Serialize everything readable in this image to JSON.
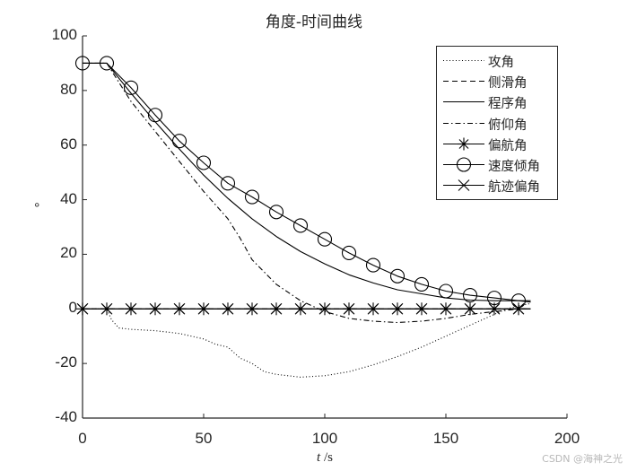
{
  "chart_data": {
    "type": "line",
    "title": "角度-时间曲线",
    "xlabel": "t /s",
    "xlabel_italic_part": "t",
    "xlabel_unit": " /s",
    "ylabel": "°",
    "xlim": [
      0,
      200
    ],
    "ylim": [
      -40,
      100
    ],
    "xticks": [
      0,
      50,
      100,
      150,
      200
    ],
    "yticks": [
      -40,
      -20,
      0,
      20,
      40,
      60,
      80,
      100
    ],
    "grid": false,
    "legend_position": "northeast",
    "series": [
      {
        "name": "攻角",
        "style": "dotted",
        "marker": "none",
        "x": [
          0,
          10,
          12,
          15,
          20,
          30,
          40,
          50,
          55,
          60,
          65,
          70,
          75,
          80,
          90,
          100,
          110,
          120,
          130,
          140,
          150,
          160,
          170,
          175,
          180,
          185
        ],
        "y": [
          0,
          0,
          -4,
          -7,
          -7.5,
          -8,
          -9,
          -11,
          -13,
          -14,
          -18,
          -20,
          -23,
          -24,
          -25,
          -24.5,
          -23,
          -20.5,
          -17.5,
          -14,
          -10,
          -6,
          -2,
          0,
          1,
          2
        ]
      },
      {
        "name": "侧滑角",
        "style": "dashed",
        "marker": "none",
        "x": [
          0,
          185
        ],
        "y": [
          0,
          0
        ]
      },
      {
        "name": "程序角",
        "style": "solid",
        "marker": "none",
        "x": [
          0,
          10,
          20,
          30,
          40,
          50,
          60,
          70,
          80,
          90,
          100,
          110,
          120,
          130,
          140,
          150,
          160,
          170,
          180,
          185
        ],
        "y": [
          90,
          90,
          79,
          68.5,
          58.5,
          49,
          40.5,
          33,
          26.5,
          21,
          16.5,
          12.5,
          9.5,
          7,
          5.5,
          4,
          3.2,
          3,
          3,
          3
        ]
      },
      {
        "name": "俯仰角",
        "style": "dashdot",
        "marker": "none",
        "x": [
          0,
          10,
          15,
          20,
          30,
          40,
          50,
          60,
          65,
          70,
          80,
          90,
          95,
          100,
          110,
          120,
          130,
          140,
          150,
          160,
          170,
          180,
          185
        ],
        "y": [
          90,
          90,
          83,
          76,
          65,
          54,
          43,
          33,
          26,
          18,
          9,
          3,
          1,
          -1,
          -3.5,
          -4.5,
          -5,
          -4.5,
          -3.5,
          -2,
          -1,
          0,
          0
        ]
      },
      {
        "name": "偏航角",
        "style": "solid",
        "marker": "asterisk",
        "x": [
          0,
          10,
          20,
          30,
          40,
          50,
          60,
          70,
          80,
          90,
          100,
          110,
          120,
          130,
          140,
          150,
          160,
          170,
          180,
          185
        ],
        "y": [
          0,
          0,
          0,
          0,
          0,
          0,
          0,
          0,
          0,
          0,
          0,
          0,
          0,
          0,
          0,
          0,
          0,
          0,
          0,
          0
        ]
      },
      {
        "name": "速度倾角",
        "style": "solid",
        "marker": "circle",
        "x": [
          0,
          10,
          20,
          30,
          40,
          50,
          60,
          70,
          80,
          90,
          100,
          110,
          120,
          130,
          140,
          150,
          160,
          170,
          180,
          185
        ],
        "y": [
          90,
          90,
          81,
          71,
          61.5,
          53.5,
          46,
          41,
          35.5,
          30.5,
          25.5,
          20.5,
          16,
          12,
          9,
          6.5,
          5,
          4,
          3,
          2.5
        ]
      },
      {
        "name": "航迹偏角",
        "style": "solid",
        "marker": "x",
        "x": [
          0,
          10,
          20,
          30,
          40,
          50,
          60,
          70,
          80,
          90,
          100,
          110,
          120,
          130,
          140,
          150,
          160,
          170,
          180,
          185
        ],
        "y": [
          0,
          0,
          0,
          0,
          0,
          0,
          0,
          0,
          0,
          0,
          0,
          0,
          0,
          0,
          0,
          0,
          0,
          0,
          0,
          0
        ]
      }
    ]
  },
  "watermark": "CSDN @海神之光",
  "colors": {
    "axis": "#262626",
    "line": "#000000",
    "background": "#ffffff",
    "watermark": "#b8b8b8"
  }
}
